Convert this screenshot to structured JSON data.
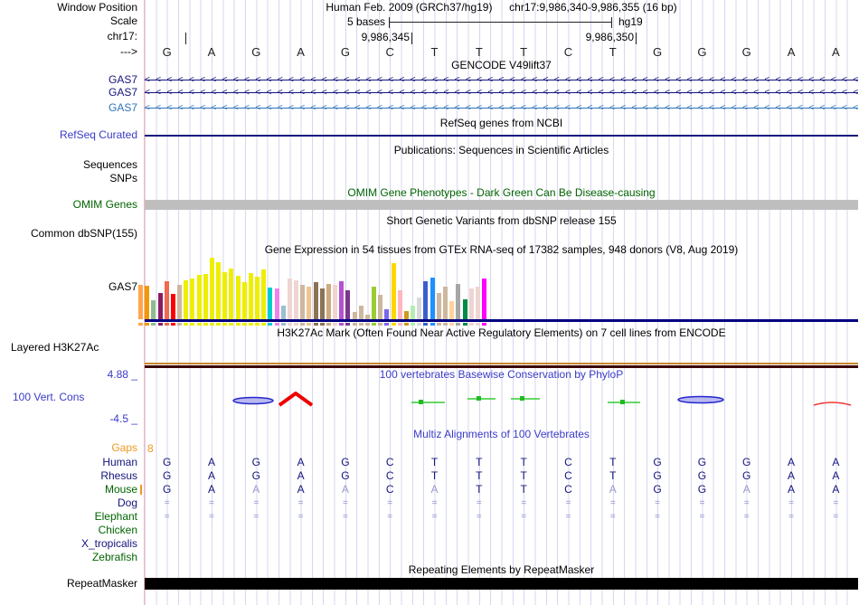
{
  "window": {
    "position_label": "Window Position",
    "assembly_text": "Human Feb. 2009 (GRCh37/hg19)",
    "range_text": "chr17:9,986,340-9,986,355 (16 bp)",
    "scale_label": "Scale",
    "scale_value": "5 bases",
    "genome": "hg19",
    "chrom_label": "chr17:",
    "tick_left": "9,986,345",
    "tick_right": "9,986,350",
    "strand_arrow": "--->"
  },
  "sequence": {
    "bases": [
      "G",
      "A",
      "G",
      "A",
      "G",
      "C",
      "T",
      "T",
      "T",
      "C",
      "T",
      "G",
      "G",
      "G",
      "A",
      "A"
    ]
  },
  "tracks": {
    "gencode": {
      "title": "GENCODE V49lift37",
      "transcripts": [
        {
          "label": "GAS7",
          "color": "#14147d"
        },
        {
          "label": "GAS7",
          "color": "#14147d"
        },
        {
          "label": "GAS7",
          "color": "#2f74b8"
        }
      ]
    },
    "refseq": {
      "title": "RefSeq genes from NCBI",
      "label": "RefSeq Curated"
    },
    "publications": {
      "title": "Publications: Sequences in Scientific Articles",
      "rows": [
        "Sequences",
        "SNPs"
      ]
    },
    "omim": {
      "title": "OMIM Gene Phenotypes - Dark Green Can Be Disease-causing",
      "label": "OMIM Genes"
    },
    "dbsnp": {
      "title": "Short Genetic Variants from dbSNP release 155",
      "label": "Common dbSNP(155)"
    },
    "gtex": {
      "title": "Gene Expression in 54 tissues from GTEx RNA-seq of 17382 samples, 948 donors (V8, Aug 2019)",
      "label": "GAS7"
    },
    "h3k27ac": {
      "title": "H3K27Ac Mark (Often Found Near Active Regulatory Elements) on 7 cell lines from ENCODE",
      "label": "Layered H3K27Ac"
    },
    "phylop": {
      "title": "100 vertebrates Basewise Conservation by PhyloP",
      "label": "100 Vert. Cons",
      "max_label": "4.88 _",
      "min_label": "-4.5 _"
    },
    "multiz": {
      "title": "Multiz Alignments of 100 Vertebrates",
      "gaps_label": "Gaps",
      "gaps_value": "8",
      "rows": [
        {
          "name": "Human",
          "label_color": "#14147d",
          "type": "bases",
          "cells": [
            "G",
            "A",
            "G",
            "A",
            "G",
            "C",
            "T",
            "T",
            "T",
            "C",
            "T",
            "G",
            "G",
            "G",
            "A",
            "A"
          ],
          "dim": []
        },
        {
          "name": "Rhesus",
          "label_color": "#14147d",
          "type": "bases",
          "cells": [
            "G",
            "A",
            "G",
            "A",
            "G",
            "C",
            "T",
            "T",
            "T",
            "C",
            "T",
            "G",
            "G",
            "G",
            "A",
            "A"
          ],
          "dim": []
        },
        {
          "name": "Mouse",
          "label_color": "#006400",
          "type": "bases",
          "cells": [
            "G",
            "A",
            "A",
            "A",
            "A",
            "C",
            "A",
            "T",
            "T",
            "C",
            "A",
            "G",
            "G",
            "A",
            "A",
            "A"
          ],
          "dim": [
            2,
            4,
            6,
            10,
            13
          ],
          "tick": true
        },
        {
          "name": "Dog",
          "label_color": "#14147d",
          "type": "equals"
        },
        {
          "name": "Elephant",
          "label_color": "#006400",
          "type": "equals"
        },
        {
          "name": "Chicken",
          "label_color": "#006400",
          "type": "empty"
        },
        {
          "name": "X_tropicalis",
          "label_color": "#14147d",
          "type": "empty"
        },
        {
          "name": "Zebrafish",
          "label_color": "#006400",
          "type": "empty"
        }
      ]
    },
    "repeatmasker": {
      "title": "Repeating Elements by RepeatMasker",
      "label": "RepeatMasker"
    }
  },
  "chart_data": {
    "type": "bar",
    "title": "Gene Expression in 54 tissues from GTEx RNA-seq of 17382 samples, 948 donors (V8, Aug 2019)",
    "gene": "GAS7",
    "note": "54 tissue bars; heights read as fraction of track height (tissue names not rendered in image)",
    "ylim": [
      0,
      1
    ],
    "values": [
      0.55,
      0.53,
      0.3,
      0.42,
      0.6,
      0.4,
      0.55,
      0.62,
      0.65,
      0.7,
      0.72,
      0.97,
      0.9,
      0.75,
      0.8,
      0.68,
      0.58,
      0.73,
      0.67,
      0.78,
      0.5,
      0.48,
      0.22,
      0.64,
      0.62,
      0.55,
      0.52,
      0.58,
      0.48,
      0.56,
      0.54,
      0.6,
      0.46,
      0.12,
      0.22,
      0.07,
      0.52,
      0.38,
      0.16,
      0.88,
      0.46,
      0.13,
      0.22,
      0.35,
      0.6,
      0.66,
      0.42,
      0.52,
      0.28,
      0.56,
      0.32,
      0.48,
      0.52,
      0.64
    ],
    "bar_colors": [
      "#FFA54F",
      "#EE9A00",
      "#8FBC8F",
      "#8B1C62",
      "#EE6A50",
      "#FF0000",
      "#CDB79E",
      "#EEEE00",
      "#EEEE00",
      "#EEEE00",
      "#EEEE00",
      "#EEEE00",
      "#EEEE00",
      "#EEEE00",
      "#EEEE00",
      "#EEEE00",
      "#EEEE00",
      "#EEEE00",
      "#EEEE00",
      "#EEEE00",
      "#00CDCD",
      "#EE82EE",
      "#9AC0CD",
      "#EED5D2",
      "#EED5D2",
      "#CDB79E",
      "#EEC591",
      "#8B7355",
      "#8B7355",
      "#CDAA7D",
      "#EED5D2",
      "#B452CD",
      "#7A378B",
      "#CDB79E",
      "#CDB79E",
      "#CDB79E",
      "#9ACD32",
      "#CDB79E",
      "#7A67EE",
      "#FFD700",
      "#FFB6C1",
      "#CD9B1D",
      "#B4EEB4",
      "#D9D9D9",
      "#3A5FCD",
      "#1E90FF",
      "#CDB79E",
      "#CDB79E",
      "#FFD39B",
      "#A6A6A6",
      "#008B45",
      "#EED5D2",
      "#EED5D2",
      "#FF00FF"
    ]
  },
  "colors": {
    "navy": "#14147d",
    "track_blue": "#3b3bc8",
    "green": "#006400",
    "orange": "#ee9922",
    "grid": "#c9c9ea",
    "edge_pink": "#ffb6b6",
    "omim_gray": "#bebebe",
    "gtex_baseline": "#000080",
    "h3k_orange": "#c8872b",
    "h3k_dark": "#3a0404",
    "repeat_black": "#000000"
  }
}
